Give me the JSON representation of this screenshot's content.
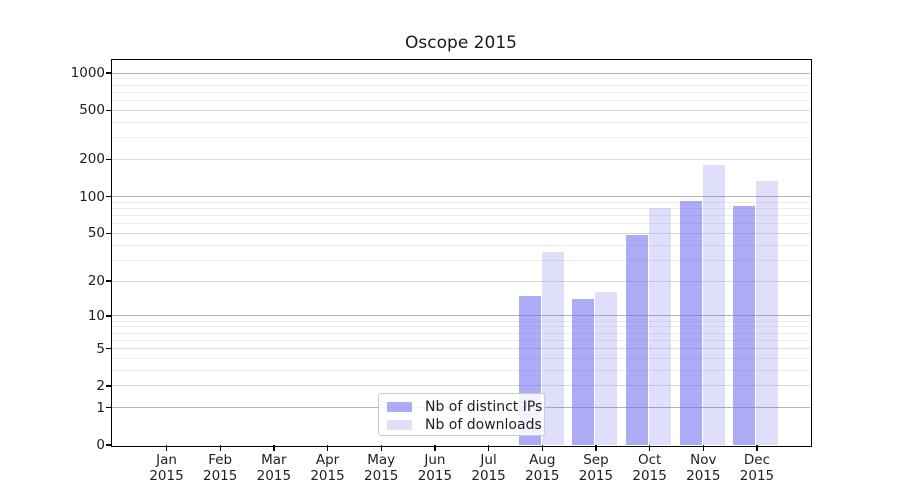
{
  "chart_data": {
    "type": "bar",
    "title": "Oscope 2015",
    "categories": [
      {
        "month": "Jan",
        "year": "2015"
      },
      {
        "month": "Feb",
        "year": "2015"
      },
      {
        "month": "Mar",
        "year": "2015"
      },
      {
        "month": "Apr",
        "year": "2015"
      },
      {
        "month": "May",
        "year": "2015"
      },
      {
        "month": "Jun",
        "year": "2015"
      },
      {
        "month": "Jul",
        "year": "2015"
      },
      {
        "month": "Aug",
        "year": "2015"
      },
      {
        "month": "Sep",
        "year": "2015"
      },
      {
        "month": "Oct",
        "year": "2015"
      },
      {
        "month": "Nov",
        "year": "2015"
      },
      {
        "month": "Dec",
        "year": "2015"
      }
    ],
    "series": [
      {
        "name": "Nb of distinct IPs",
        "color": "rgba(110,110,240,0.58)",
        "values": [
          0,
          0,
          0,
          0,
          0,
          0,
          0,
          15,
          14,
          48,
          92,
          84
        ]
      },
      {
        "name": "Nb of downloads",
        "color": "rgba(110,110,240,0.22)",
        "values": [
          0,
          0,
          0,
          0,
          0,
          0,
          0,
          35,
          16,
          80,
          180,
          134
        ]
      }
    ],
    "yticks": [
      0,
      1,
      2,
      5,
      10,
      20,
      50,
      100,
      200,
      500,
      1000
    ],
    "scale": "log1p",
    "ylim": [
      0,
      1274
    ],
    "grid": true,
    "legend_position": "lower center",
    "xlabel": "",
    "ylabel": ""
  }
}
